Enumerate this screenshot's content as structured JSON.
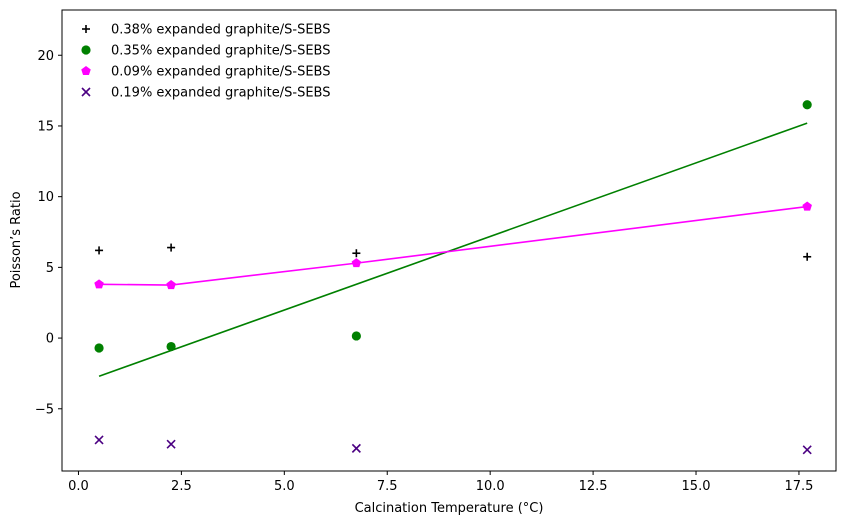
{
  "chart_data": {
    "type": "scatter",
    "title": "",
    "xlabel": "Calcination Temperature (°C)",
    "ylabel": "Poisson’s Ratio",
    "xlim": [
      -0.4,
      18.4
    ],
    "ylim": [
      -9.4,
      23.2
    ],
    "xticks": [
      0.0,
      2.5,
      5.0,
      7.5,
      10.0,
      12.5,
      15.0,
      17.5
    ],
    "xtick_labels": [
      "0.0",
      "2.5",
      "5.0",
      "7.5",
      "10.0",
      "12.5",
      "15.0",
      "17.5"
    ],
    "yticks": [
      -5,
      0,
      5,
      10,
      15,
      20
    ],
    "ytick_labels": [
      "−5",
      "0",
      "5",
      "10",
      "15",
      "20"
    ],
    "grid": false,
    "legend_position": "top-left",
    "series": [
      {
        "name": "0.38% expanded graphite/S-SEBS",
        "marker": "plus",
        "color": "#000000",
        "points": [
          [
            0.5,
            6.2
          ],
          [
            2.25,
            6.4
          ],
          [
            6.75,
            6.0
          ],
          [
            17.7,
            5.75
          ]
        ]
      },
      {
        "name": "0.35% expanded graphite/S-SEBS",
        "marker": "circle",
        "color": "#008000",
        "points": [
          [
            0.5,
            -0.7
          ],
          [
            2.25,
            -0.6
          ],
          [
            6.75,
            0.15
          ],
          [
            17.7,
            16.5
          ]
        ],
        "fit_line": [
          [
            0.5,
            -2.7
          ],
          [
            17.7,
            15.2
          ]
        ]
      },
      {
        "name": "0.09% expanded graphite/S-SEBS",
        "marker": "pentagon",
        "color": "#ff00ff",
        "points": [
          [
            0.5,
            3.8
          ],
          [
            2.25,
            3.75
          ],
          [
            6.75,
            5.3
          ],
          [
            17.7,
            9.3
          ]
        ],
        "connect": true
      },
      {
        "name": "0.19% expanded graphite/S-SEBS",
        "marker": "x",
        "color": "#4b0082",
        "points": [
          [
            0.5,
            -7.2
          ],
          [
            2.25,
            -7.5
          ],
          [
            6.75,
            -7.8
          ],
          [
            17.7,
            -7.9
          ]
        ]
      }
    ]
  }
}
